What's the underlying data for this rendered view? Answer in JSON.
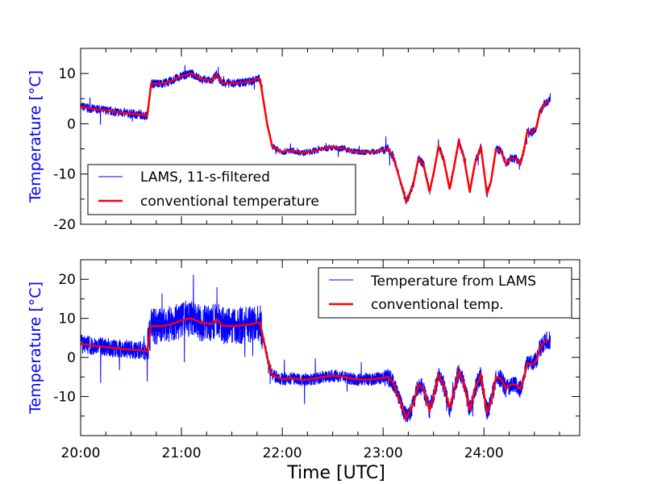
{
  "chart_data": [
    {
      "type": "line",
      "ylabel": "Temperature [$^\\circ$C]",
      "ylabel_display": "Temperature [°C]",
      "ylabel_color": "#0000ff",
      "ylim": [
        -20,
        15
      ],
      "yticks": [
        -20,
        -10,
        0,
        10
      ],
      "xlim": [
        20.0,
        24.95
      ],
      "xticks_hours": [
        20,
        21,
        22,
        23,
        24
      ],
      "legend_placement": "lower-left",
      "series": [
        {
          "name": "LAMS, 11-s-filtered",
          "color": "#0000ff",
          "noise": 0.9
        },
        {
          "name": "conventional temperature",
          "color": "#ff0000"
        }
      ]
    },
    {
      "type": "line",
      "ylabel": "Temperature [°C]",
      "ylabel_color": "#0000ff",
      "ylim": [
        -20,
        25
      ],
      "yticks": [
        -10,
        0,
        10,
        20
      ],
      "xlim": [
        20.0,
        24.95
      ],
      "xticks_hours": [
        20,
        21,
        22,
        23,
        24
      ],
      "xtick_labels": [
        "20:00",
        "21:00",
        "22:00",
        "23:00",
        "24:00"
      ],
      "xlabel": "Time [UTC]",
      "legend_placement": "upper-right",
      "series": [
        {
          "name": "Temperature from LAMS",
          "color": "#0000ff",
          "noise": 3.0
        },
        {
          "name": "conventional temp.",
          "color": "#ff0000"
        }
      ]
    }
  ],
  "conventional_trace_hours_degC": [
    [
      20.0,
      3.5
    ],
    [
      20.1,
      3.0
    ],
    [
      20.2,
      2.8
    ],
    [
      20.3,
      2.5
    ],
    [
      20.4,
      2.2
    ],
    [
      20.5,
      2.0
    ],
    [
      20.6,
      1.8
    ],
    [
      20.66,
      1.5
    ],
    [
      20.7,
      8.0
    ],
    [
      20.8,
      8.0
    ],
    [
      20.9,
      8.5
    ],
    [
      21.0,
      9.5
    ],
    [
      21.1,
      10.0
    ],
    [
      21.2,
      8.8
    ],
    [
      21.3,
      8.6
    ],
    [
      21.35,
      9.8
    ],
    [
      21.4,
      8.2
    ],
    [
      21.5,
      8.0
    ],
    [
      21.6,
      8.2
    ],
    [
      21.7,
      8.5
    ],
    [
      21.75,
      9.0
    ],
    [
      21.78,
      8.8
    ],
    [
      21.85,
      0.0
    ],
    [
      21.9,
      -4.5
    ],
    [
      22.0,
      -5.6
    ],
    [
      22.1,
      -5.3
    ],
    [
      22.2,
      -5.8
    ],
    [
      22.3,
      -5.5
    ],
    [
      22.4,
      -5.0
    ],
    [
      22.5,
      -4.7
    ],
    [
      22.6,
      -4.9
    ],
    [
      22.7,
      -5.5
    ],
    [
      22.8,
      -5.7
    ],
    [
      22.9,
      -5.6
    ],
    [
      23.0,
      -5.2
    ],
    [
      23.05,
      -5.0
    ],
    [
      23.1,
      -6.5
    ],
    [
      23.18,
      -12.0
    ],
    [
      23.23,
      -15.5
    ],
    [
      23.3,
      -12.0
    ],
    [
      23.35,
      -7.0
    ],
    [
      23.4,
      -8.0
    ],
    [
      23.46,
      -13.5
    ],
    [
      23.5,
      -10.0
    ],
    [
      23.55,
      -4.5
    ],
    [
      23.6,
      -7.0
    ],
    [
      23.66,
      -13.0
    ],
    [
      23.7,
      -9.0
    ],
    [
      23.75,
      -3.5
    ],
    [
      23.8,
      -6.5
    ],
    [
      23.86,
      -13.5
    ],
    [
      23.91,
      -8.0
    ],
    [
      23.97,
      -4.5
    ],
    [
      24.03,
      -14.0
    ],
    [
      24.07,
      -11.5
    ],
    [
      24.12,
      -5.0
    ],
    [
      24.17,
      -5.5
    ],
    [
      24.22,
      -8.0
    ],
    [
      24.27,
      -6.9
    ],
    [
      24.32,
      -7.0
    ],
    [
      24.36,
      -8.0
    ],
    [
      24.4,
      -5.0
    ],
    [
      24.43,
      -1.5
    ],
    [
      24.48,
      -1.7
    ],
    [
      24.52,
      -0.8
    ],
    [
      24.55,
      2.0
    ],
    [
      24.6,
      4.0
    ],
    [
      24.65,
      4.5
    ]
  ]
}
